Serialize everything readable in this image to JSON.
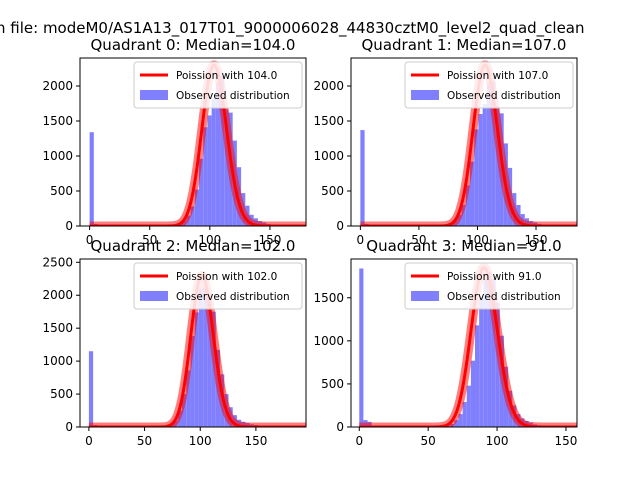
{
  "figure": {
    "suptitle": "n file: modeM0/AS1A13_017T01_9000006028_44830cztM0_level2_quad_clean"
  },
  "colors": {
    "hist": "#8080ff",
    "poisson": "#ff0000",
    "frame": "#000000"
  },
  "chart_data": [
    {
      "type": "histogram",
      "title": "Quadrant 0: Median=104.0",
      "xlim": [
        -8,
        180
      ],
      "ylim": [
        0,
        2400
      ],
      "xticks": [
        0,
        50,
        100,
        150
      ],
      "yticks": [
        0,
        500,
        1000,
        1500,
        2000
      ],
      "legend_position": "top-right",
      "series": [
        {
          "name": "Poission with 104.0",
          "kind": "line",
          "mean": 104.0,
          "peak": 2300
        },
        {
          "name": "Observed distribution",
          "kind": "bar",
          "bin_width": 3.5,
          "total_count": 18000,
          "x": [
            0,
            3.5,
            70,
            73.5,
            77,
            80.5,
            84,
            87.5,
            91,
            94.5,
            98,
            101.5,
            105,
            108.5,
            112,
            115.5,
            119,
            122.5,
            126,
            129.5,
            133,
            136.5,
            140,
            143.5,
            147,
            150.5,
            154
          ],
          "values": [
            1340,
            30,
            15,
            35,
            80,
            150,
            280,
            520,
            960,
            1410,
            1580,
            1820,
            2050,
            2140,
            1670,
            1620,
            1220,
            840,
            470,
            290,
            160,
            110,
            70,
            50,
            30,
            20,
            10
          ]
        }
      ]
    },
    {
      "type": "histogram",
      "title": "Quadrant 1: Median=107.0",
      "xlim": [
        -8,
        185
      ],
      "ylim": [
        0,
        2400
      ],
      "xticks": [
        0,
        50,
        100,
        150
      ],
      "yticks": [
        0,
        500,
        1000,
        1500,
        2000
      ],
      "legend_position": "top-right",
      "series": [
        {
          "name": "Poission with 107.0",
          "kind": "line",
          "mean": 107.0,
          "peak": 2300
        },
        {
          "name": "Observed distribution",
          "kind": "bar",
          "bin_width": 3.6,
          "total_count": 18000,
          "x": [
            0,
            3.6,
            72,
            75.6,
            79.2,
            82.8,
            86.4,
            90,
            93.6,
            97.2,
            100.8,
            104.4,
            108,
            111.6,
            115.2,
            118.8,
            122.4,
            126,
            129.6,
            133.2,
            136.8,
            140.4,
            144,
            147.6,
            151.2,
            154.8,
            158.4
          ],
          "values": [
            1370,
            30,
            15,
            35,
            80,
            160,
            300,
            580,
            920,
            1380,
            1600,
            1740,
            2050,
            2070,
            1720,
            1610,
            1180,
            830,
            470,
            300,
            170,
            110,
            70,
            50,
            30,
            20,
            10
          ]
        }
      ]
    },
    {
      "type": "histogram",
      "title": "Quadrant 2: Median=102.0",
      "xlim": [
        -8,
        195
      ],
      "ylim": [
        0,
        2550
      ],
      "xticks": [
        0,
        50,
        100,
        150
      ],
      "yticks": [
        0,
        500,
        1000,
        1500,
        2000,
        2500
      ],
      "legend_position": "top-right",
      "series": [
        {
          "name": "Poission with 102.0",
          "kind": "line",
          "mean": 102.0,
          "peak": 2300
        },
        {
          "name": "Observed distribution",
          "kind": "bar",
          "bin_width": 3.8,
          "total_count": 18000,
          "x": [
            0,
            3.8,
            68.4,
            72.2,
            76,
            79.8,
            83.6,
            87.4,
            91.2,
            95,
            98.8,
            102.6,
            106.4,
            110.2,
            114,
            117.8,
            121.6,
            125.4,
            129.2,
            133,
            136.8,
            140.6,
            144.4,
            148.2,
            152,
            155.8
          ],
          "values": [
            1150,
            30,
            15,
            40,
            100,
            250,
            500,
            860,
            1380,
            1740,
            2100,
            2120,
            2000,
            1750,
            1170,
            800,
            500,
            300,
            180,
            110,
            80,
            60,
            40,
            30,
            20,
            10
          ]
        }
      ]
    },
    {
      "type": "histogram",
      "title": "Quadrant 3: Median=91.0",
      "xlim": [
        -6,
        158
      ],
      "ylim": [
        0,
        1950
      ],
      "xticks": [
        0,
        50,
        100,
        150
      ],
      "yticks": [
        0,
        500,
        1000,
        1500
      ],
      "legend_position": "top-right",
      "series": [
        {
          "name": "Poission with 91.0",
          "kind": "line",
          "mean": 91.0,
          "peak": 1850
        },
        {
          "name": "Observed distribution",
          "kind": "bar",
          "bin_width": 3.0,
          "total_count": 18000,
          "x": [
            0,
            3,
            6,
            63,
            66,
            69,
            72,
            75,
            78,
            81,
            84,
            87,
            90,
            93,
            96,
            99,
            102,
            105,
            108,
            111,
            114,
            117,
            120,
            123,
            126,
            129,
            132
          ],
          "values": [
            1840,
            80,
            60,
            15,
            35,
            80,
            150,
            290,
            480,
            770,
            1180,
            1500,
            1720,
            1800,
            1720,
            1440,
            1060,
            700,
            420,
            250,
            150,
            100,
            70,
            50,
            30,
            20,
            10
          ]
        }
      ]
    }
  ]
}
